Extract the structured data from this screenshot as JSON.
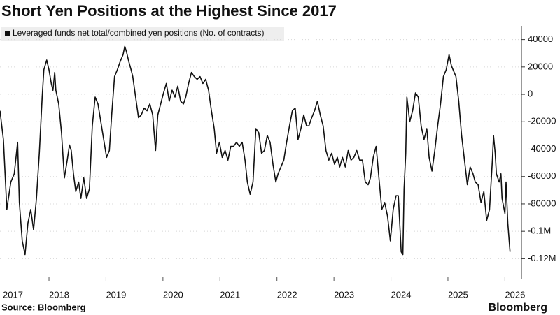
{
  "chart_data": {
    "type": "line",
    "title": "Short Yen Positions at the Highest Since 2017",
    "source": "Source: Bloomberg",
    "logo": "Bloomberg",
    "x": [
      2017.14,
      2017.2,
      2017.26,
      2017.33,
      2017.39,
      2017.45,
      2017.48,
      2017.53,
      2017.58,
      2017.63,
      2017.68,
      2017.73,
      2017.78,
      2017.83,
      2017.88,
      2017.91,
      2017.96,
      2018.0,
      2018.04,
      2018.07,
      2018.1,
      2018.12,
      2018.17,
      2018.22,
      2018.27,
      2018.32,
      2018.36,
      2018.39,
      2018.43,
      2018.47,
      2018.52,
      2018.56,
      2018.61,
      2018.66,
      2018.71,
      2018.76,
      2018.81,
      2018.86,
      2018.91,
      2018.96,
      2019.01,
      2019.06,
      2019.1,
      2019.15,
      2019.2,
      2019.25,
      2019.3,
      2019.33,
      2019.36,
      2019.4,
      2019.44,
      2019.47,
      2019.52,
      2019.57,
      2019.62,
      2019.67,
      2019.72,
      2019.77,
      2019.82,
      2019.87,
      2019.91,
      2019.96,
      2020.01,
      2020.06,
      2020.11,
      2020.16,
      2020.21,
      2020.26,
      2020.31,
      2020.36,
      2020.4,
      2020.45,
      2020.5,
      2020.55,
      2020.6,
      2020.65,
      2020.7,
      2020.75,
      2020.8,
      2020.85,
      2020.9,
      2020.94,
      2020.99,
      2021.04,
      2021.09,
      2021.14,
      2021.19,
      2021.24,
      2021.29,
      2021.34,
      2021.39,
      2021.44,
      2021.48,
      2021.53,
      2021.58,
      2021.63,
      2021.68,
      2021.73,
      2021.78,
      2021.83,
      2021.88,
      2021.93,
      2021.98,
      2022.02,
      2022.07,
      2022.12,
      2022.17,
      2022.22,
      2022.27,
      2022.32,
      2022.37,
      2022.42,
      2022.47,
      2022.52,
      2022.56,
      2022.61,
      2022.66,
      2022.71,
      2022.76,
      2022.81,
      2022.86,
      2022.91,
      2022.96,
      2023.01,
      2023.06,
      2023.1,
      2023.15,
      2023.2,
      2023.25,
      2023.3,
      2023.35,
      2023.4,
      2023.45,
      2023.5,
      2023.55,
      2023.6,
      2023.64,
      2023.69,
      2023.74,
      2023.79,
      2023.84,
      2023.89,
      2023.94,
      2023.99,
      2024.04,
      2024.09,
      2024.13,
      2024.18,
      2024.21,
      2024.23,
      2024.26,
      2024.28,
      2024.33,
      2024.38,
      2024.43,
      2024.48,
      2024.53,
      2024.58,
      2024.63,
      2024.67,
      2024.72,
      2024.77,
      2024.82,
      2024.87,
      2024.92,
      2024.97,
      2025.02,
      2025.06,
      2025.09,
      2025.14,
      2025.19,
      2025.24,
      2025.29,
      2025.34,
      2025.39,
      2025.44,
      2025.48,
      2025.53,
      2025.58,
      2025.63,
      2025.68,
      2025.73,
      2025.78,
      2025.8,
      2025.83,
      2025.85,
      2025.9,
      2025.93,
      2025.95,
      2026.0,
      2026.02,
      2026.05,
      2026.09
    ],
    "series": [
      {
        "name": "Leveraged funds net total/combined yen positions (No. of contracts)",
        "color": "#111111",
        "values": [
          -12000,
          -33000,
          -84000,
          -64000,
          -58000,
          -35000,
          -79000,
          -107000,
          -117000,
          -94000,
          -84000,
          -99000,
          -76000,
          -43000,
          -2000,
          18000,
          25000,
          18000,
          8000,
          3000,
          16000,
          3000,
          -7000,
          -28000,
          -61000,
          -48000,
          -37000,
          -41000,
          -58000,
          -71000,
          -64000,
          -76000,
          -61000,
          -76000,
          -69000,
          -23000,
          -2000,
          -7000,
          -20000,
          -33000,
          -46000,
          -41000,
          -15000,
          13000,
          18000,
          24000,
          29000,
          35000,
          31000,
          24000,
          18000,
          13000,
          -2000,
          -17000,
          -15000,
          -10000,
          -12000,
          -7000,
          -15000,
          -41000,
          -15000,
          -7000,
          1000,
          8000,
          -5000,
          3000,
          -2000,
          6000,
          -5000,
          -7000,
          -2000,
          8000,
          16000,
          13000,
          11000,
          13000,
          8000,
          11000,
          3000,
          -12000,
          -25000,
          -43000,
          -35000,
          -46000,
          -41000,
          -48000,
          -38000,
          -38000,
          -35000,
          -38000,
          -35000,
          -48000,
          -64000,
          -73000,
          -64000,
          -25000,
          -28000,
          -43000,
          -41000,
          -30000,
          -35000,
          -51000,
          -64000,
          -58000,
          -53000,
          -48000,
          -35000,
          -23000,
          -12000,
          -10000,
          -33000,
          -25000,
          -15000,
          -23000,
          -23000,
          -17000,
          -12000,
          -5000,
          -15000,
          -23000,
          -41000,
          -48000,
          -43000,
          -51000,
          -46000,
          -53000,
          -46000,
          -53000,
          -41000,
          -48000,
          -46000,
          -41000,
          -48000,
          -48000,
          -64000,
          -66000,
          -61000,
          -46000,
          -38000,
          -61000,
          -84000,
          -79000,
          -89000,
          -107000,
          -84000,
          -74000,
          -74000,
          -115000,
          -117000,
          -69000,
          -43000,
          -2000,
          -20000,
          -12000,
          1000,
          -2000,
          -23000,
          -33000,
          -25000,
          -46000,
          -56000,
          -41000,
          -23000,
          -7000,
          13000,
          18000,
          29000,
          21000,
          18000,
          13000,
          -5000,
          -30000,
          -48000,
          -66000,
          -53000,
          -58000,
          -64000,
          -66000,
          -79000,
          -71000,
          -92000,
          -84000,
          -48000,
          -30000,
          -43000,
          -58000,
          -64000,
          -58000,
          -76000,
          -87000,
          -64000,
          -94000,
          -115000
        ]
      }
    ],
    "xlim": [
      2017.14,
      2026.29
    ],
    "xticks": [
      2017,
      2018,
      2019,
      2020,
      2021,
      2022,
      2023,
      2024,
      2025,
      2026
    ],
    "ylim": [
      -130000,
      50000
    ],
    "yticks": [
      40000,
      20000,
      0,
      -20000,
      -40000,
      -60000,
      -80000,
      {
        "value": -100000,
        "label": "-0.1M"
      },
      {
        "value": -120000,
        "label": "-0.12M"
      }
    ],
    "grid": true
  }
}
